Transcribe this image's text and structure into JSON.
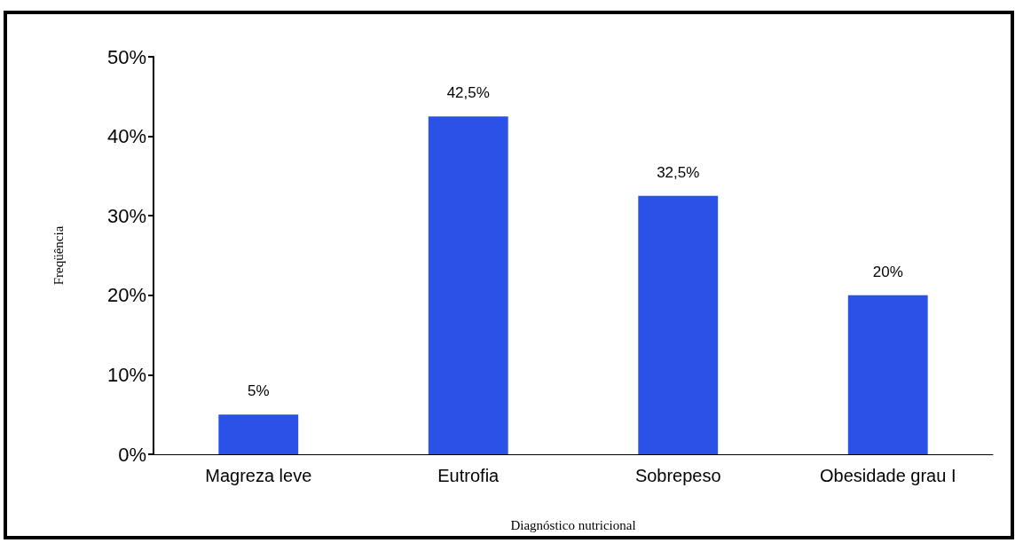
{
  "chart_data": {
    "type": "bar",
    "xlabel": "Diagnóstico nutricional",
    "ylabel": "Freqüência",
    "categories": [
      "Magreza leve",
      "Eutrofia",
      "Sobrepeso",
      "Obesidade grau I"
    ],
    "values": [
      5,
      42.5,
      32.5,
      20
    ],
    "value_labels": [
      "5%",
      "42,5%",
      "32,5%",
      "20%"
    ],
    "color": "#2a52e6",
    "ylim": [
      0,
      50
    ],
    "yticks": [
      {
        "value": 0,
        "label": "0%"
      },
      {
        "value": 10,
        "label": "10%"
      },
      {
        "value": 20,
        "label": "20%"
      },
      {
        "value": 30,
        "label": "30%"
      },
      {
        "value": 40,
        "label": "40%"
      },
      {
        "value": 50,
        "label": "50%"
      }
    ],
    "grid": false
  }
}
